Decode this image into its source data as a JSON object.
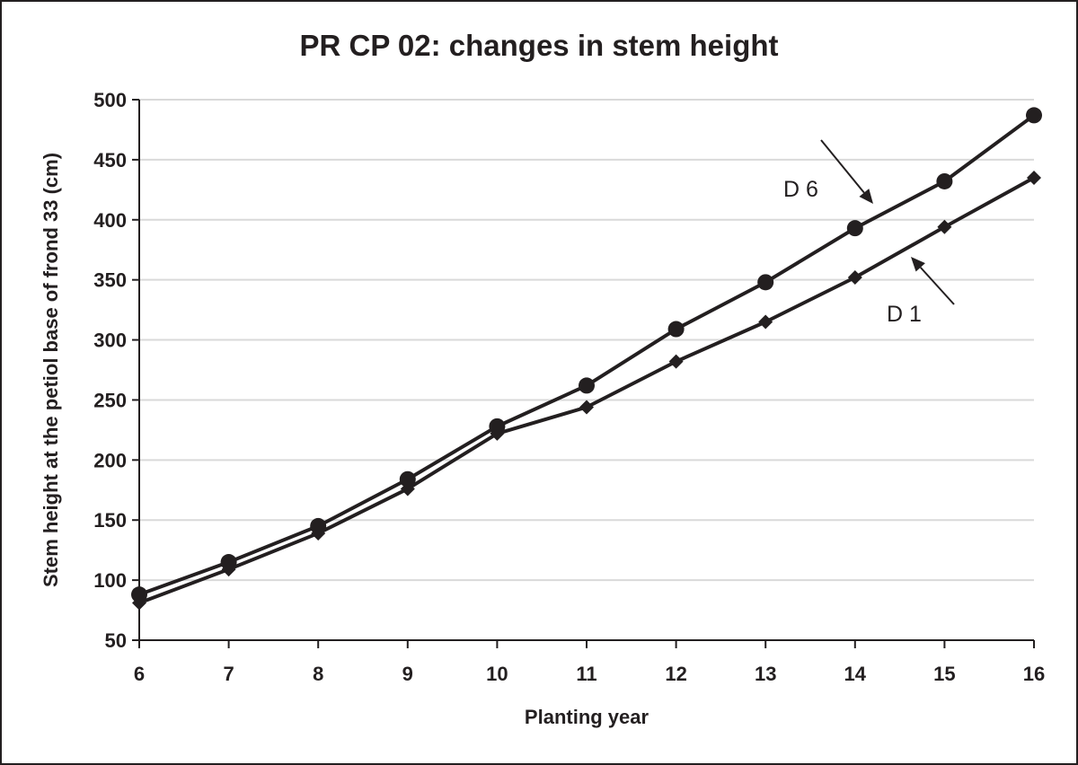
{
  "chart_data": {
    "type": "line",
    "title": "PR CP 02: changes in stem height",
    "xlabel": "Planting year",
    "ylabel": "Stem height at the petiol base of frond 33 (cm)",
    "x": [
      6,
      7,
      8,
      9,
      10,
      11,
      12,
      13,
      14,
      15,
      16
    ],
    "xlim": [
      6,
      16
    ],
    "ylim": [
      50,
      500
    ],
    "yticks": [
      50,
      100,
      150,
      200,
      250,
      300,
      350,
      400,
      450,
      500
    ],
    "grid": true,
    "series": [
      {
        "name": "D 6",
        "marker": "circle",
        "values": [
          88,
          115,
          145,
          184,
          228,
          262,
          309,
          348,
          393,
          432,
          487
        ]
      },
      {
        "name": "D 1",
        "marker": "diamond",
        "values": [
          81,
          109,
          139,
          176,
          222,
          244,
          282,
          315,
          352,
          394,
          435
        ]
      }
    ],
    "annotations": [
      {
        "text": "D 6",
        "series": "D 6"
      },
      {
        "text": "D 1",
        "series": "D 1"
      }
    ]
  },
  "colors": {
    "ink": "#231f20",
    "grid": "#d9d9d9",
    "background": "#ffffff"
  }
}
